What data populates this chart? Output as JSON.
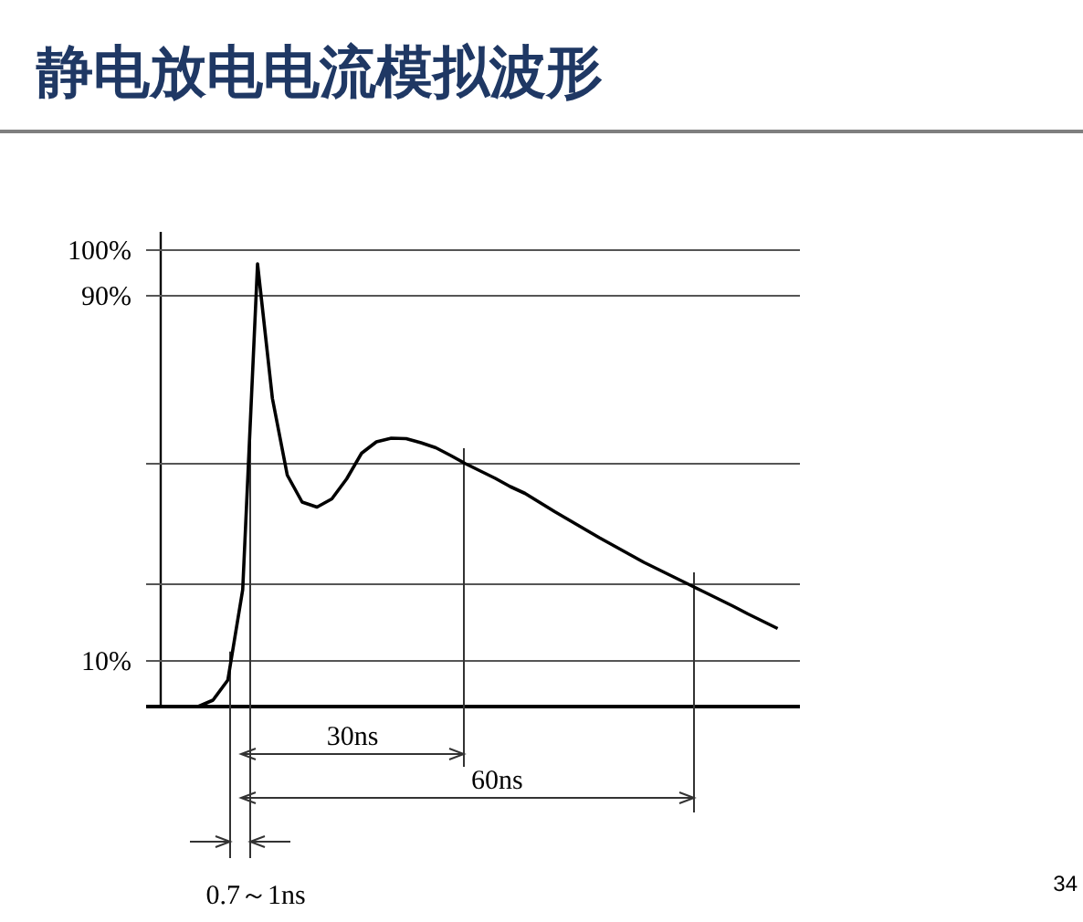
{
  "chart_data": {
    "type": "line",
    "title": "静电放电电流模拟波形",
    "categories": [
      null,
      null,
      null,
      null,
      null,
      null,
      null,
      null,
      null,
      null,
      null,
      null,
      null,
      null,
      null,
      null,
      null,
      null,
      null,
      null,
      null,
      null,
      null,
      null,
      null,
      null,
      null,
      null,
      null,
      null,
      null,
      null,
      null,
      null,
      null,
      null,
      null,
      null,
      null,
      null,
      null,
      null,
      null,
      null
    ],
    "series": [
      {
        "color": "#000000",
        "values": [
          0,
          0,
          0,
          0,
          1.4,
          5.8,
          25.6,
          97,
          67.5,
          50.7,
          44.8,
          43.7,
          45.5,
          49.9,
          55.5,
          58,
          58.8,
          58.7,
          57.8,
          56.7,
          55,
          53.2,
          51.6,
          50,
          48.2,
          46.7,
          44.7,
          42.7,
          40.8,
          38.9,
          37,
          35.2,
          33.4,
          31.6,
          30,
          28.4,
          26.8,
          25.2,
          23.6,
          22,
          20.3,
          18.7,
          17.1,
          null
        ]
      }
    ],
    "ylim": [
      0,
      104
    ],
    "yticks": [
      {
        "value": 100,
        "label": "100%"
      },
      {
        "value": 90,
        "label": "90%"
      },
      {
        "value": 10,
        "label": "10%"
      }
    ],
    "tick_labels": "y",
    "ref_lines": [
      {
        "axis": "y",
        "value": 100,
        "label": null
      },
      {
        "axis": "y",
        "value": 90,
        "label": null
      },
      {
        "axis": "y",
        "value": 53.2,
        "label": null
      },
      {
        "axis": "y",
        "value": 26.8,
        "label": null
      },
      {
        "axis": "y",
        "value": 10,
        "label": null
      }
    ],
    "annotations": [
      "30ns",
      "60ns",
      "0.7～1ns",
      "34"
    ],
    "marker": "none",
    "line_style": "solid"
  }
}
